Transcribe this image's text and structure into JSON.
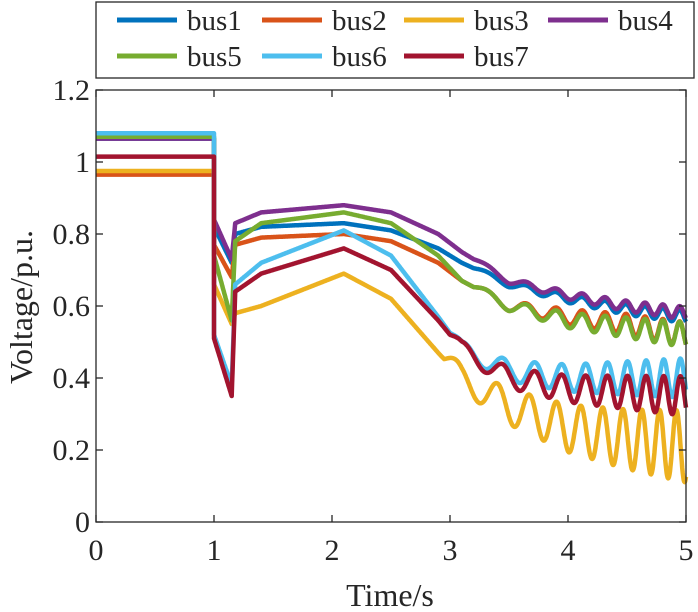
{
  "chart_data": {
    "type": "line",
    "title": "",
    "xlabel": "Time/s",
    "ylabel": "Voltage/p.u.",
    "xlim": [
      0,
      5
    ],
    "ylim": [
      0,
      1.2
    ],
    "xticks": [
      0,
      1,
      2,
      3,
      4,
      5
    ],
    "xtick_labels": [
      "0",
      "1",
      "2",
      "3",
      "4",
      "5"
    ],
    "yticks": [
      0,
      0.2,
      0.4,
      0.6,
      0.8,
      1,
      1.2
    ],
    "ytick_labels": [
      "0",
      "0.2",
      "0.4",
      "0.6",
      "0.8",
      "1",
      "1.2"
    ],
    "grid": false,
    "legend_position": "top",
    "series": [
      {
        "name": "bus1",
        "color": "#0072BD",
        "x": [
          0,
          1,
          1.0,
          1.15,
          1.18,
          1.4,
          2.1,
          2.5,
          2.9,
          3.1,
          3.5,
          4.0,
          4.5,
          5.0
        ],
        "y": [
          1.065,
          1.065,
          0.82,
          0.72,
          0.8,
          0.82,
          0.83,
          0.81,
          0.76,
          0.72,
          0.66,
          0.62,
          0.59,
          0.57
        ],
        "osc_start": 3.2,
        "osc_amp_start": 0.006,
        "osc_amp_end": 0.018
      },
      {
        "name": "bus2",
        "color": "#D95319",
        "x": [
          0,
          1,
          1.0,
          1.15,
          1.18,
          1.4,
          2.1,
          2.5,
          2.9,
          3.1,
          3.5,
          4.0,
          4.5,
          5.0
        ],
        "y": [
          0.965,
          0.965,
          0.77,
          0.68,
          0.77,
          0.79,
          0.8,
          0.78,
          0.72,
          0.67,
          0.6,
          0.57,
          0.55,
          0.52
        ],
        "osc_start": 3.2,
        "osc_amp_start": 0.01,
        "osc_amp_end": 0.035
      },
      {
        "name": "bus3",
        "color": "#EDB120",
        "x": [
          0,
          1,
          1.0,
          1.15,
          1.18,
          1.4,
          2.1,
          2.5,
          2.9,
          3.1,
          3.5,
          4.0,
          4.5,
          5.0
        ],
        "y": [
          0.975,
          0.975,
          0.66,
          0.55,
          0.58,
          0.6,
          0.69,
          0.62,
          0.47,
          0.4,
          0.32,
          0.26,
          0.23,
          0.21
        ],
        "osc_start": 2.95,
        "osc_amp_start": 0.03,
        "osc_amp_end": 0.1
      },
      {
        "name": "bus4",
        "color": "#7E2F8E",
        "x": [
          0,
          1,
          1.0,
          1.15,
          1.18,
          1.4,
          2.1,
          2.5,
          2.9,
          3.1,
          3.5,
          4.0,
          4.5,
          5.0
        ],
        "y": [
          1.065,
          1.065,
          0.84,
          0.73,
          0.83,
          0.86,
          0.88,
          0.86,
          0.8,
          0.75,
          0.67,
          0.63,
          0.6,
          0.58
        ],
        "osc_start": 3.2,
        "osc_amp_start": 0.006,
        "osc_amp_end": 0.018
      },
      {
        "name": "bus5",
        "color": "#77AC30",
        "x": [
          0,
          1,
          1.0,
          1.15,
          1.18,
          1.4,
          2.1,
          2.5,
          2.9,
          3.1,
          3.5,
          4.0,
          4.5,
          5.0
        ],
        "y": [
          1.07,
          1.07,
          0.74,
          0.56,
          0.78,
          0.83,
          0.86,
          0.83,
          0.74,
          0.67,
          0.6,
          0.56,
          0.54,
          0.52
        ],
        "osc_start": 3.2,
        "osc_amp_start": 0.01,
        "osc_amp_end": 0.035
      },
      {
        "name": "bus6",
        "color": "#4DBEEE",
        "x": [
          0,
          1,
          1.0,
          1.15,
          1.18,
          1.4,
          2.1,
          2.5,
          2.9,
          3.1,
          3.5,
          4.0,
          4.5,
          5.0
        ],
        "y": [
          1.08,
          1.08,
          0.52,
          0.38,
          0.66,
          0.72,
          0.81,
          0.74,
          0.57,
          0.48,
          0.42,
          0.4,
          0.4,
          0.4
        ],
        "osc_start": 3.0,
        "osc_amp_start": 0.02,
        "osc_amp_end": 0.055
      },
      {
        "name": "bus7",
        "color": "#A2142F",
        "x": [
          0,
          1,
          1.0,
          1.15,
          1.18,
          1.4,
          2.1,
          2.5,
          2.9,
          3.1,
          3.5,
          4.0,
          4.5,
          5.0
        ],
        "y": [
          1.015,
          1.015,
          0.51,
          0.35,
          0.64,
          0.69,
          0.76,
          0.7,
          0.56,
          0.48,
          0.4,
          0.37,
          0.36,
          0.35
        ],
        "osc_start": 3.0,
        "osc_amp_start": 0.02,
        "osc_amp_end": 0.055
      }
    ],
    "legend": {
      "rows": [
        [
          "bus1",
          "bus2",
          "bus3",
          "bus4"
        ],
        [
          "bus5",
          "bus6",
          "bus7"
        ]
      ]
    }
  }
}
